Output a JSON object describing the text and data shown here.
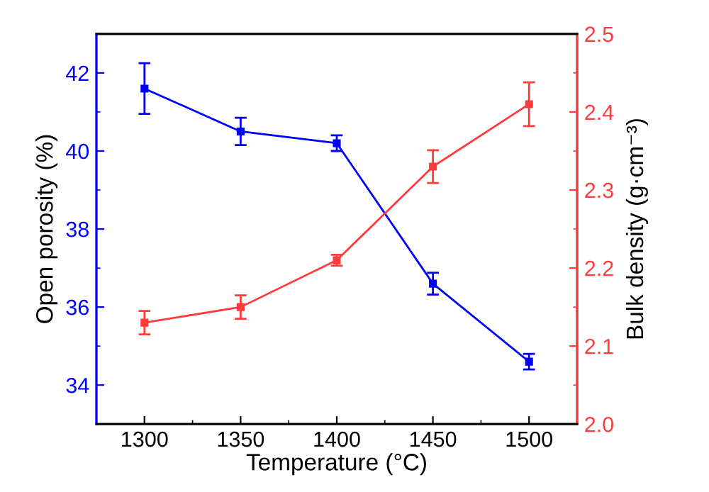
{
  "chart_data": {
    "type": "line",
    "xlabel": "Temperature (°C)",
    "ylabel": "Open porosity (%)",
    "y2label": "Bulk density (g·cm⁻³)",
    "x": [
      1300,
      1350,
      1400,
      1450,
      1500
    ],
    "series": [
      {
        "color": "#0000ff",
        "values": [
          41.6,
          40.5,
          40.2,
          36.6,
          34.6
        ],
        "errors": [
          0.65,
          0.35,
          0.2,
          0.28,
          0.2
        ]
      },
      {
        "color": "#ff3b3b",
        "axis": "y2",
        "values": [
          2.13,
          2.15,
          2.21,
          2.33,
          2.41
        ],
        "errors": [
          0.015,
          0.015,
          0.007,
          0.021,
          0.028
        ]
      }
    ],
    "xlim": [
      1275,
      1525
    ],
    "xticks": [
      1300,
      {
        "value": 1325,
        "label": null
      },
      1350,
      {
        "value": 1375,
        "label": null
      },
      1400,
      {
        "value": 1425,
        "label": null
      },
      1450,
      {
        "value": 1475,
        "label": null
      },
      1500
    ],
    "ylim": [
      33,
      43
    ],
    "yticks": [
      34,
      {
        "value": 35,
        "label": null
      },
      36,
      {
        "value": 37,
        "label": null
      },
      38,
      {
        "value": 39,
        "label": null
      },
      40,
      {
        "value": 41,
        "label": null
      },
      42
    ],
    "y2lim": [
      2.0,
      2.5
    ],
    "y2ticks": [
      {
        "value": 2.0,
        "label": "2.0"
      },
      {
        "value": 2.05,
        "label": null
      },
      2.1,
      {
        "value": 2.15,
        "label": null
      },
      2.2,
      {
        "value": 2.25,
        "label": null
      },
      2.3,
      {
        "value": 2.35,
        "label": null
      },
      2.4,
      {
        "value": 2.45,
        "label": null
      },
      2.5
    ],
    "marker": "square",
    "line_style": "solid",
    "grid": false,
    "legend": false
  }
}
